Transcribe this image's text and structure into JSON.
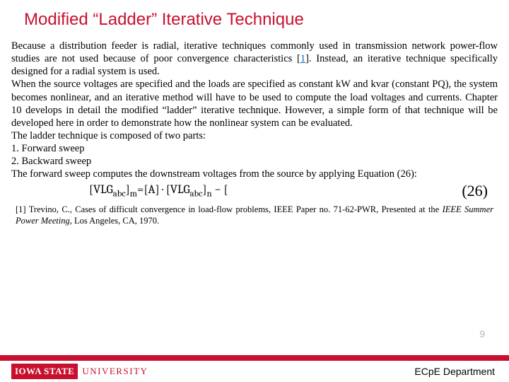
{
  "title": "Modified “Ladder” Iterative Technique",
  "para1_a": "Because a distribution feeder is radial, iterative techniques commonly used in transmission network power-flow studies are not used because of poor convergence characteristics [",
  "ref_link": "1",
  "para1_b": "]. Instead, an iterative technique specifically designed for a radial system is used.",
  "para2": "When the source voltages are specified and the loads are specified as constant kW and kvar (constant PQ), the system becomes nonlinear, and an iterative method will have to be used to compute the load voltages and currents. Chapter 10 develops in detail the modified “ladder” iterative technique. However, a simple form of that technique will be developed here in order to demonstrate how the nonlinear system can be evaluated.",
  "para3": "The ladder technique is composed of two parts:",
  "item1": "1.    Forward sweep",
  "item2": "2.    Backward sweep",
  "para4": "The forward sweep computes the downstream voltages from the source by applying Equation (26):",
  "equation_lhs": "[VLG",
  "equation_sub1": "abc",
  "equation_mid1": "]",
  "equation_subm": "m",
  "equation_eq": "=[A] · [VLG",
  "equation_sub2": "abc",
  "equation_mid2": "]",
  "equation_subn": "n",
  "equation_end": " − [",
  "eq_num": "(26)",
  "footnote_a": "[1] Trevino, C., Cases of difficult convergence in load-flow problems, IEEE Paper no. 71-62-PWR, Presented at the ",
  "footnote_italic": "IEEE Summer Power Meeting",
  "footnote_b": ", Los Angeles, CA, 1970.",
  "page_num": "9",
  "logo_box": "IOWA STATE",
  "logo_text": "UNIVERSITY",
  "dept": "ECpE Department",
  "colors": {
    "accent": "#c8102e",
    "link": "#0563c1",
    "page_num": "#b7b7b7"
  }
}
